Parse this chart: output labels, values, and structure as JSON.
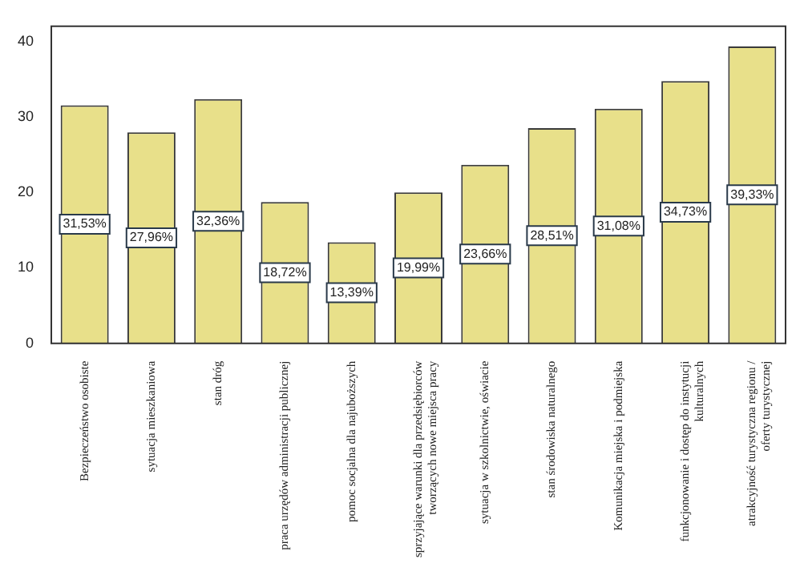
{
  "chart_data": {
    "type": "bar",
    "categories": [
      "Bezpieczeństwo osobiste",
      "sytuacja mieszkaniowa",
      "stan dróg",
      "praca urzędów administracji publicznej",
      "pomoc socjalna dla najuboższych",
      "sprzyjające warunki dla przedsiębiorców tworzących nowe miejsca pracy",
      "sytuacja w szkolnictwie, oświacie",
      "stan środowiska naturalnego",
      "Komunikacja miejska i podmiejska",
      "funkcjonowanie i dostęp do instytucji kulturalnych",
      "atrakcyjność turystyczna regionu / oferty turystycznej"
    ],
    "values": [
      31.53,
      27.96,
      32.36,
      18.72,
      13.39,
      19.99,
      23.66,
      28.51,
      31.08,
      34.73,
      39.33
    ],
    "value_labels": [
      "31,53%",
      "27,96%",
      "32,36%",
      "18,72%",
      "13,39%",
      "19,99%",
      "23,66%",
      "28,51%",
      "31,08%",
      "34,73%",
      "39,33%"
    ],
    "color": "#e8e08a",
    "ylim": [
      0,
      42
    ],
    "yticks": [
      0,
      10,
      20,
      30,
      40
    ],
    "grid": false,
    "legend": false
  }
}
